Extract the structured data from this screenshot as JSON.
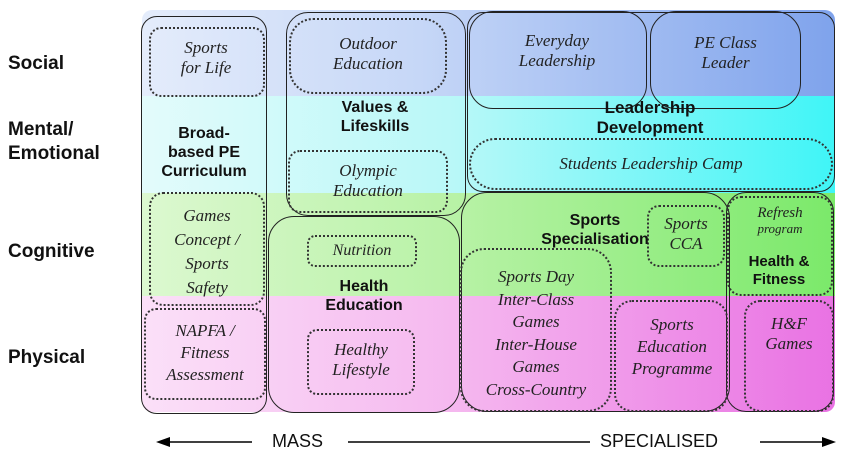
{
  "rows": {
    "social": "Social",
    "mental_line1": "Mental/",
    "mental_line2": "Emotional",
    "cognitive": "Cognitive",
    "physical": "Physical"
  },
  "boxes": {
    "sports_for_life": [
      "Sports",
      "for Life"
    ],
    "outdoor_education": [
      "Outdoor",
      "Education"
    ],
    "everyday_leadership": [
      "Everyday",
      "Leadership"
    ],
    "pe_class_leader": [
      "PE Class",
      "Leader"
    ],
    "broad_based_pe": [
      "Broad-",
      "based PE",
      "Curriculum"
    ],
    "values_lifeskills": [
      "Values &",
      "Lifeskills"
    ],
    "olympic_education": [
      "Olympic",
      "Education"
    ],
    "leadership_development": [
      "Leadership",
      "Development"
    ],
    "students_leadership_camp": "Students Leadership Camp",
    "games_concept": [
      "Games",
      "Concept /",
      "Sports",
      "Safety"
    ],
    "nutrition": "Nutrition",
    "health_education": [
      "Health",
      "Education"
    ],
    "sports_specialisation": [
      "Sports",
      "Specialisation"
    ],
    "sports_cca": [
      "Sports",
      "CCA"
    ],
    "refresh_program": [
      "Refresh",
      "program"
    ],
    "health_fitness": [
      "Health &",
      "Fitness"
    ],
    "sports_day": [
      "Sports Day",
      "Inter-Class",
      "Games",
      "Inter-House",
      "Games",
      "Cross-Country"
    ],
    "napfa": [
      "NAPFA /",
      "Fitness",
      "Assessment"
    ],
    "healthy_lifestyle": [
      "Healthy",
      "Lifestyle"
    ],
    "sports_education_programme": [
      "Sports",
      "Education",
      "Programme"
    ],
    "hf_games": [
      "H&F",
      "Games"
    ]
  },
  "axis": {
    "left_label": "MASS",
    "right_label": "SPECIALISED"
  },
  "colors": {
    "social_band": "#b4cdf5",
    "mental_band_left": "#cff6f6",
    "mental_band_right": "#5ff5f5",
    "cognitive_band": "#c8f5b4",
    "cognitive_band_right": "#8fef7a",
    "physical_band": "#f7c3f0",
    "physical_band_right": "#f08fe8"
  }
}
